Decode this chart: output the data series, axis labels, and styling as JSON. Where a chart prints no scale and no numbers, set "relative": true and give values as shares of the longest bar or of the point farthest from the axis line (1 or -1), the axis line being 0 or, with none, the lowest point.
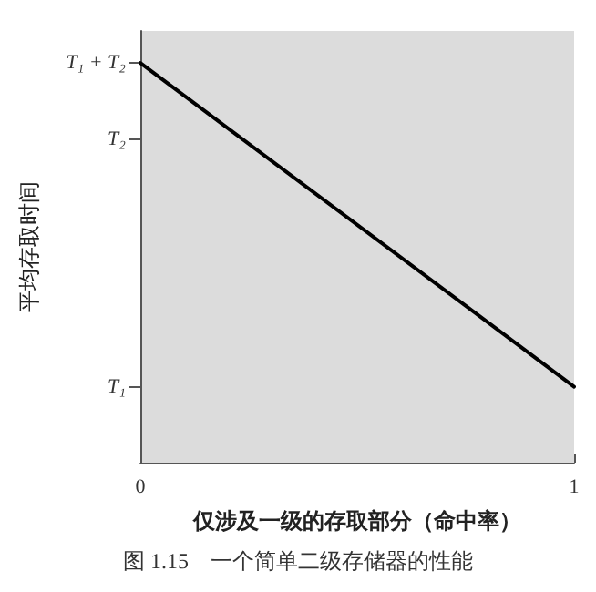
{
  "chart_data": {
    "type": "line",
    "xlabel": "仅涉及一级的存取部分（命中率）",
    "ylabel": "平均存取时间",
    "annotations": [
      "图 1.15　一个简单二级存储器的性能",
      "T₁",
      "T₂",
      "T₁ + T₂"
    ],
    "x": [
      0,
      1
    ],
    "xlim": [
      0,
      1
    ],
    "xticks": [
      0,
      1
    ],
    "relative": true,
    "series": [
      {
        "color": "#000000",
        "values": [
          1,
          0.19
        ]
      }
    ],
    "marker": "none",
    "line_style": "solid",
    "grid": false
  }
}
